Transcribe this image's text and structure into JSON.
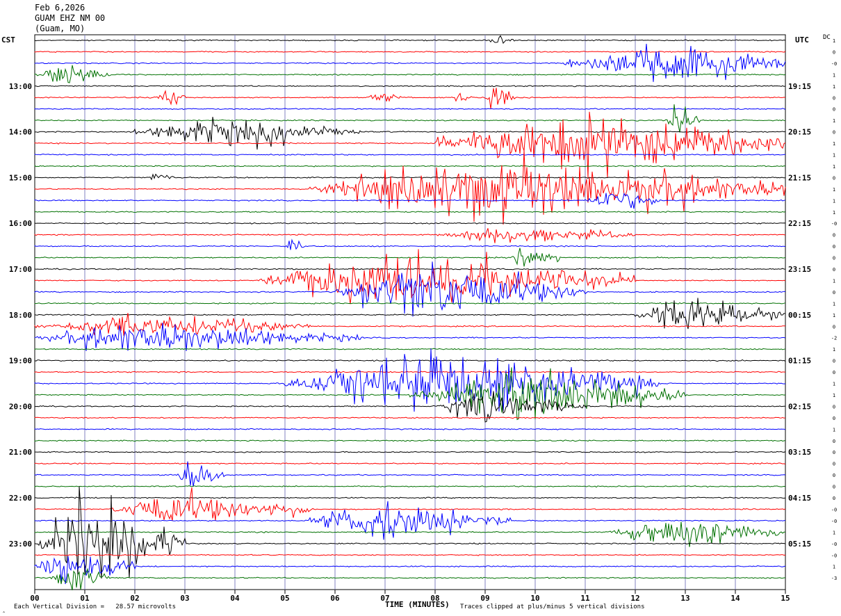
{
  "header": {
    "date": "Feb 6,2026",
    "station": "GUAM EHZ NM 00",
    "location": "(Guam, MO)"
  },
  "axes": {
    "left_label": "CST",
    "right_label": "UTC",
    "dc_label": "DC",
    "xlabel": "TIME (MINUTES)",
    "x_ticks": [
      "00",
      "01",
      "02",
      "03",
      "04",
      "05",
      "06",
      "07",
      "08",
      "09",
      "10",
      "11",
      "12",
      "13",
      "14",
      "15"
    ]
  },
  "footer": {
    "left_mark": "‸",
    "vertical_division": "Each Vertical Division =   28.57 microvolts",
    "clip_note": "Traces clipped at plus/minus 5 vertical divisions"
  },
  "colors": {
    "black": "#000000",
    "red": "#ff0000",
    "blue": "#0000ff",
    "green": "#007000",
    "grid": "#8080c0"
  },
  "chart_data": {
    "type": "helicorder",
    "minutes_per_line": 15,
    "line_colors_cycle": [
      "black",
      "red",
      "blue",
      "green"
    ],
    "cst_hour_labels": [
      "13:00",
      "14:00",
      "15:00",
      "16:00",
      "17:00",
      "18:00",
      "19:00",
      "20:00",
      "21:00",
      "22:00",
      "23:00"
    ],
    "utc_hour_labels": [
      "19:15",
      "20:15",
      "21:15",
      "22:15",
      "23:15",
      "00:15",
      "01:15",
      "02:15",
      "03:15",
      "04:15",
      "05:15"
    ],
    "first_labeled_line": 4,
    "dc_offsets": [
      "1",
      "0",
      "-0",
      "1",
      "1",
      "0",
      "0",
      "1",
      "0",
      "1",
      "1",
      "1",
      "0",
      "1",
      "1",
      "1",
      "-0",
      "0",
      "0",
      "0",
      "0",
      "1",
      "0",
      "1",
      "1",
      "0",
      "-2",
      "1",
      "0",
      "0",
      "1",
      "1",
      "0",
      "0",
      "1",
      "0",
      "0",
      "0",
      "0",
      "0",
      "0",
      "-0",
      "-0",
      "1",
      "-0",
      "-0",
      "1",
      "-3"
    ],
    "events": [
      {
        "line": 0,
        "start": 9.0,
        "end": 9.6,
        "amp": 0.4
      },
      {
        "line": 2,
        "start": 10.5,
        "end": 15.0,
        "amp": 1.4,
        "peak": 12.8
      },
      {
        "line": 3,
        "start": 0.0,
        "end": 1.5,
        "amp": 0.7
      },
      {
        "line": 5,
        "start": 2.4,
        "end": 3.0,
        "amp": 0.9
      },
      {
        "line": 5,
        "start": 6.6,
        "end": 7.4,
        "amp": 0.3
      },
      {
        "line": 5,
        "start": 8.3,
        "end": 8.8,
        "amp": 0.3
      },
      {
        "line": 5,
        "start": 9.0,
        "end": 9.6,
        "amp": 1.2
      },
      {
        "line": 7,
        "start": 12.6,
        "end": 13.3,
        "amp": 1.0
      },
      {
        "line": 8,
        "start": 2.0,
        "end": 6.5,
        "amp": 1.1
      },
      {
        "line": 9,
        "start": 8.0,
        "end": 15.0,
        "amp": 2.2
      },
      {
        "line": 12,
        "start": 2.2,
        "end": 2.8,
        "amp": 0.3
      },
      {
        "line": 13,
        "start": 5.5,
        "end": 15.0,
        "amp": 2.0
      },
      {
        "line": 14,
        "start": 11.0,
        "end": 12.5,
        "amp": 0.8
      },
      {
        "line": 17,
        "start": 8.0,
        "end": 12.0,
        "amp": 0.6
      },
      {
        "line": 18,
        "start": 5.0,
        "end": 5.4,
        "amp": 0.5
      },
      {
        "line": 19,
        "start": 9.5,
        "end": 10.5,
        "amp": 0.8
      },
      {
        "line": 21,
        "start": 4.5,
        "end": 12.0,
        "amp": 1.8
      },
      {
        "line": 22,
        "start": 6.0,
        "end": 11.0,
        "amp": 1.8
      },
      {
        "line": 24,
        "start": 12.0,
        "end": 15.0,
        "amp": 1.2
      },
      {
        "line": 25,
        "start": 0.0,
        "end": 5.5,
        "amp": 0.8
      },
      {
        "line": 26,
        "start": 0.0,
        "end": 6.5,
        "amp": 1.0
      },
      {
        "line": 30,
        "start": 5.0,
        "end": 12.5,
        "amp": 2.2
      },
      {
        "line": 31,
        "start": 7.5,
        "end": 13.0,
        "amp": 1.6
      },
      {
        "line": 32,
        "start": 8.0,
        "end": 11.0,
        "amp": 1.0
      },
      {
        "line": 38,
        "start": 2.8,
        "end": 3.8,
        "amp": 1.1
      },
      {
        "line": 41,
        "start": 1.5,
        "end": 5.5,
        "amp": 1.1
      },
      {
        "line": 42,
        "start": 5.5,
        "end": 9.5,
        "amp": 1.4
      },
      {
        "line": 43,
        "start": 11.5,
        "end": 15.0,
        "amp": 1.1
      },
      {
        "line": 44,
        "start": 0.0,
        "end": 3.0,
        "amp": 2.5
      },
      {
        "line": 46,
        "start": 0.0,
        "end": 2.0,
        "amp": 1.3
      },
      {
        "line": 47,
        "start": 0.3,
        "end": 1.5,
        "amp": 1.0
      }
    ]
  }
}
